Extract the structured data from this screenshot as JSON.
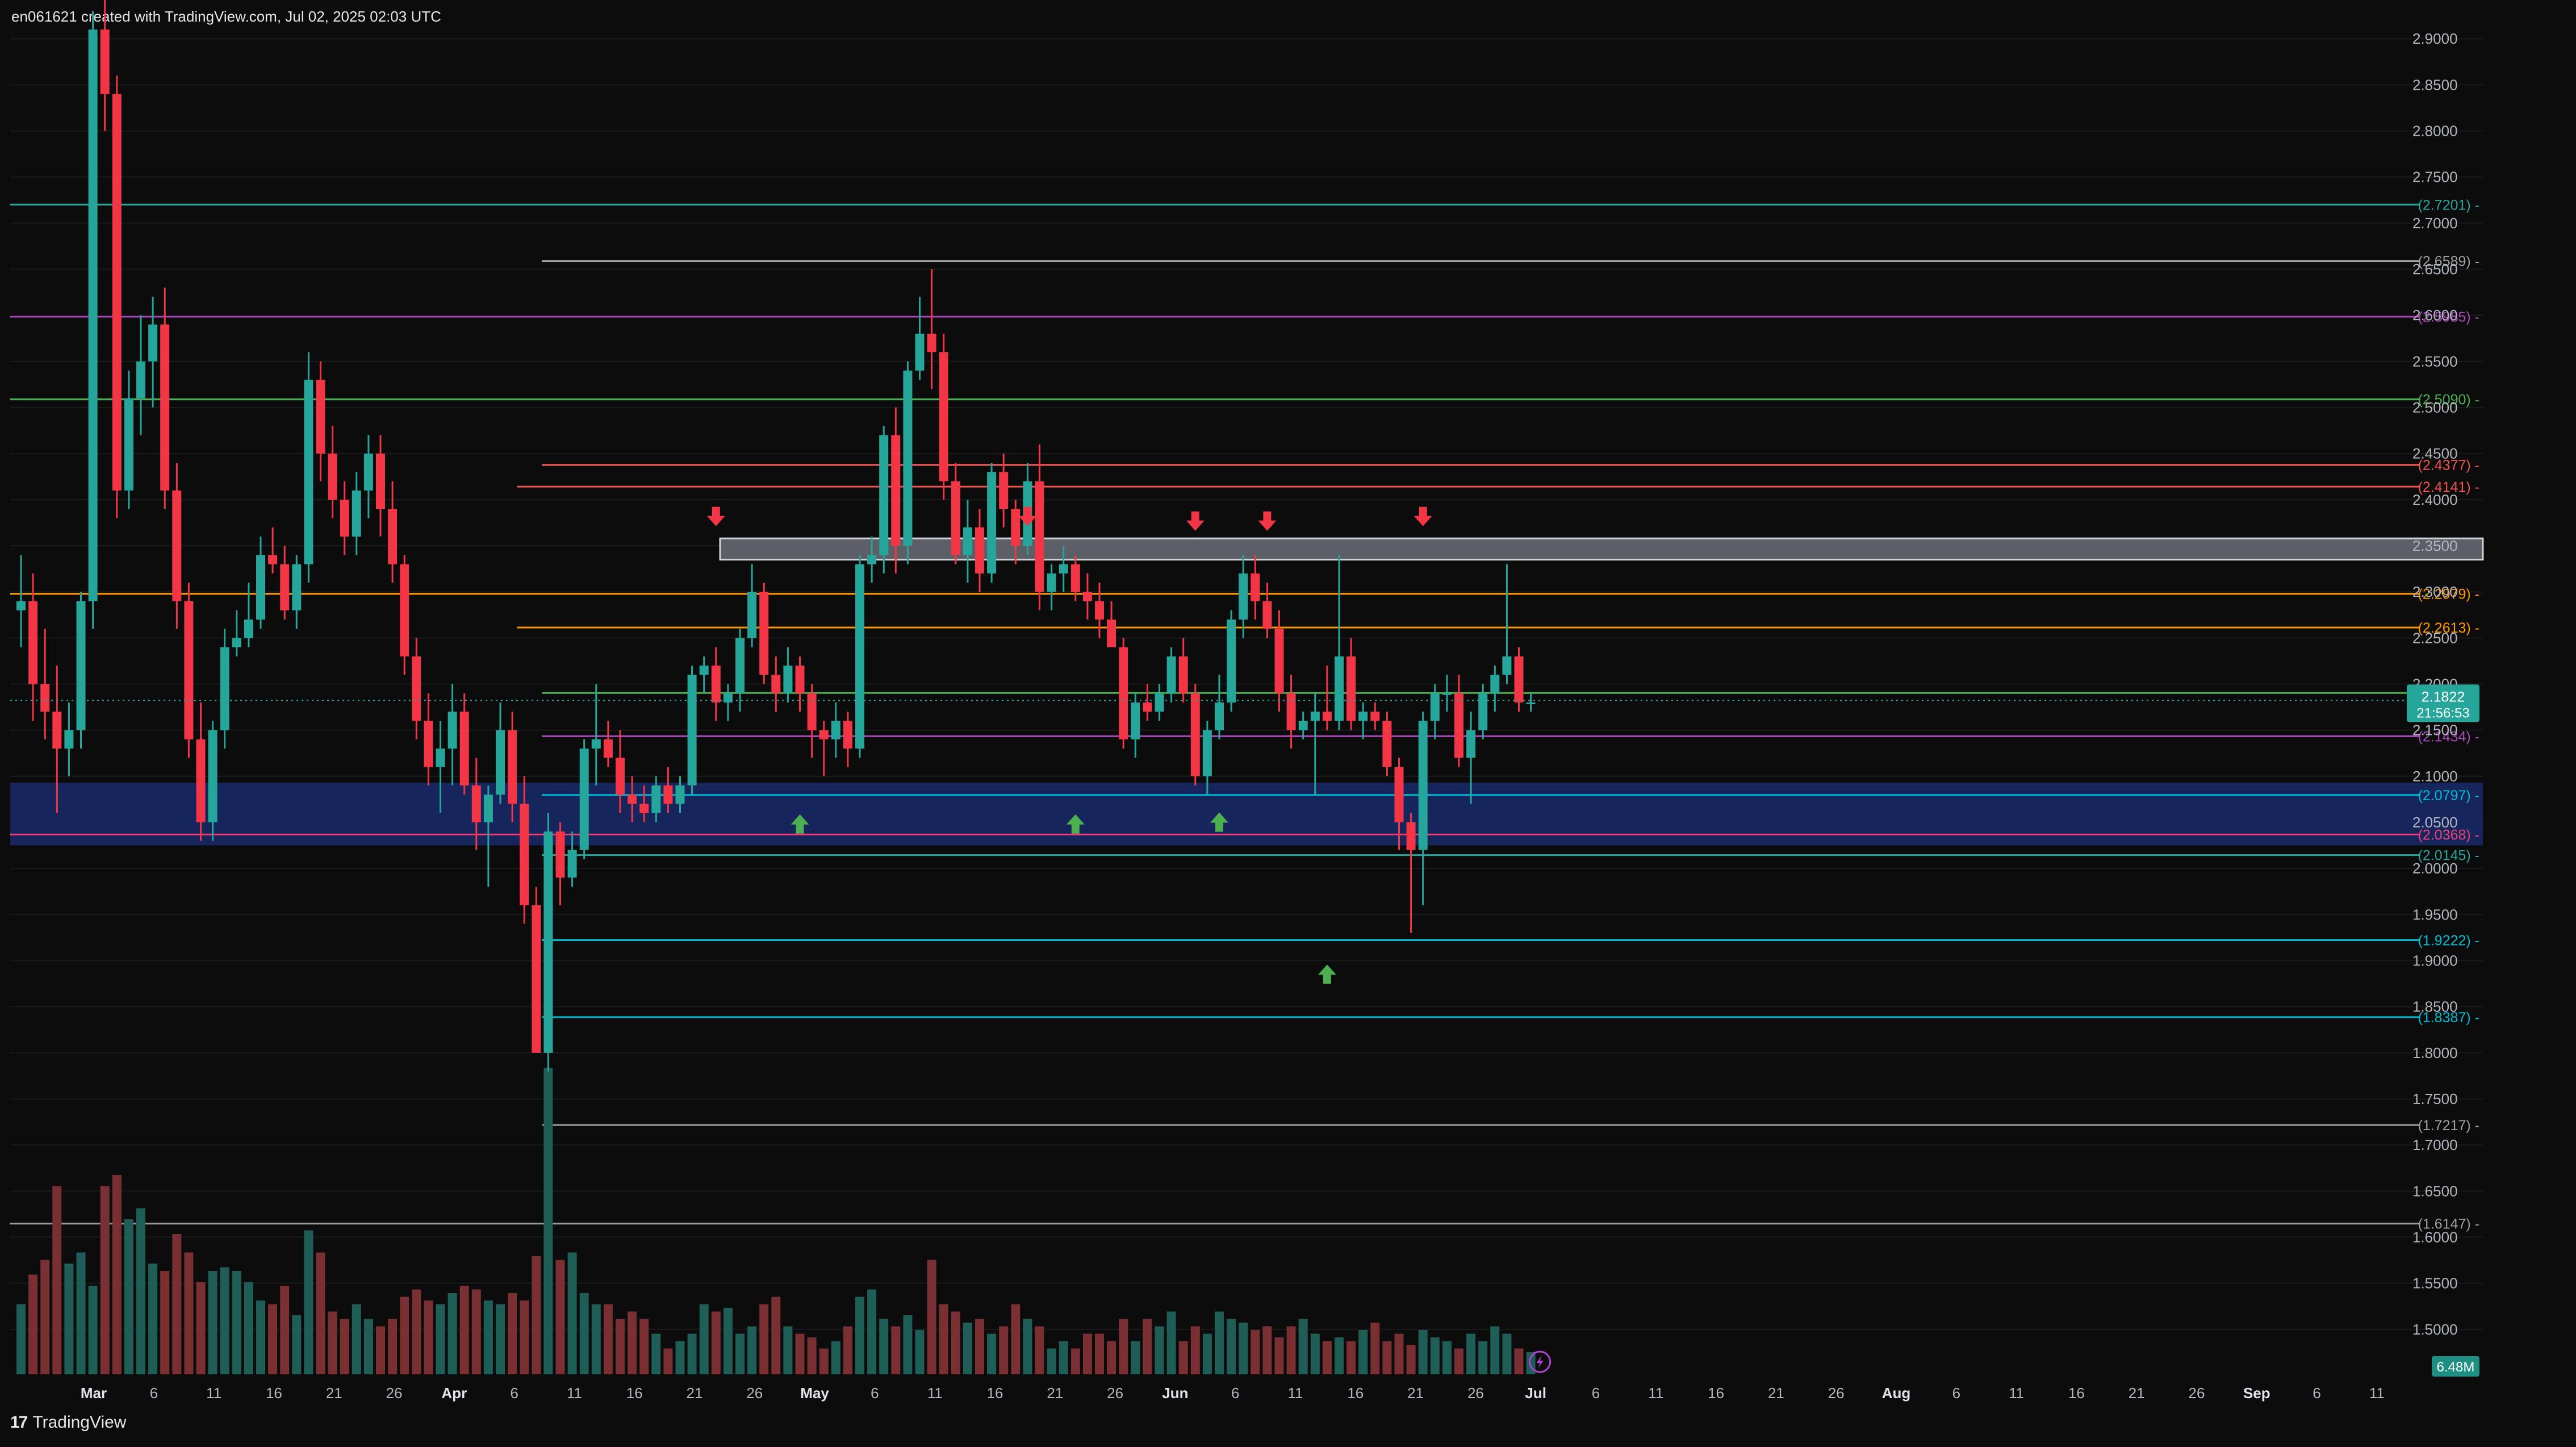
{
  "header": {
    "attribution": "en061621 created with TradingView.com, Jul 02, 2025 02:03 UTC"
  },
  "footer": {
    "brand": "TradingView"
  },
  "chart_data": {
    "type": "candlestick",
    "ylim": [
      1.45,
      2.91
    ],
    "y_ticks": [
      "2.9000",
      "2.8500",
      "2.8000",
      "2.7500",
      "2.7000",
      "2.6500",
      "2.6000",
      "2.5500",
      "2.5000",
      "2.4500",
      "2.4000",
      "2.3500",
      "2.3000",
      "2.2500",
      "2.2000",
      "2.1500",
      "2.1000",
      "2.0500",
      "2.0000",
      "1.9500",
      "1.9000",
      "1.8500",
      "1.8000",
      "1.7500",
      "1.7000",
      "1.6500",
      "1.6000",
      "1.5500",
      "1.5000"
    ],
    "x_labels": [
      "Mar",
      "6",
      "11",
      "16",
      "21",
      "26",
      "Apr",
      "6",
      "11",
      "16",
      "21",
      "26",
      "May",
      "6",
      "11",
      "16",
      "21",
      "26",
      "Jun",
      "6",
      "11",
      "16",
      "21",
      "26",
      "Jul",
      "6",
      "11",
      "16",
      "21",
      "26",
      "Aug",
      "6",
      "11",
      "16",
      "21",
      "26",
      "Sep",
      "6",
      "11"
    ],
    "bold_labels": [
      "Mar",
      "Apr",
      "May",
      "Jun",
      "Jul",
      "Aug",
      "Sep"
    ],
    "levels": [
      {
        "label": "(2.7201)",
        "value": 2.7201,
        "color": "#26a69a",
        "start": 0
      },
      {
        "label": "(2.6589)",
        "value": 2.6589,
        "color": "#9e9e9e",
        "start": 0.215
      },
      {
        "label": "(2.5985)",
        "value": 2.5985,
        "color": "#ab47bc",
        "start": 0
      },
      {
        "label": "(2.5090)",
        "value": 2.509,
        "color": "#4caf50",
        "start": 0
      },
      {
        "label": "(2.4377)",
        "value": 2.4377,
        "color": "#ef5350",
        "start": 0.215
      },
      {
        "label": "(2.4141)",
        "value": 2.4141,
        "color": "#ef5350",
        "start": 0.205
      },
      {
        "label": "(2.2979)",
        "value": 2.2979,
        "color": "#ff9800",
        "start": 0
      },
      {
        "label": "(2.2613)",
        "value": 2.2613,
        "color": "#ff9800",
        "start": 0.205
      },
      {
        "label": "(2.1903)",
        "value": 2.1903,
        "color": "#4caf50",
        "start": 0.215
      },
      {
        "label": "(2.1434)",
        "value": 2.1434,
        "color": "#ab47bc",
        "start": 0.215
      },
      {
        "label": "(2.0797)",
        "value": 2.0797,
        "color": "#00bcd4",
        "start": 0.215
      },
      {
        "label": "(2.0368)",
        "value": 2.0368,
        "color": "#ec407a",
        "start": 0
      },
      {
        "label": "(2.0145)",
        "value": 2.0145,
        "color": "#26a69a",
        "start": 0.215
      },
      {
        "label": "(1.9222)",
        "value": 1.9222,
        "color": "#00bcd4",
        "start": 0.215
      },
      {
        "label": "(1.8387)",
        "value": 1.8387,
        "color": "#00bcd4",
        "start": 0.215
      },
      {
        "label": "(1.7217)",
        "value": 1.7217,
        "color": "#9e9e9e",
        "start": 0.215
      },
      {
        "label": "(1.6147)",
        "value": 1.6147,
        "color": "#9e9e9e",
        "start": 0
      }
    ],
    "resistance_zone": [
      2.335,
      2.358
    ],
    "support_zone": [
      2.025,
      2.093
    ],
    "current_price": {
      "value": 2.1822,
      "label": "2.1822",
      "countdown": "21:56:53",
      "color": "#26a69a"
    },
    "volume_label": "6.48M",
    "down_arrows": [
      {
        "day": 58,
        "price": 2.375
      },
      {
        "day": 84,
        "price": 2.375
      },
      {
        "day": 98,
        "price": 2.37
      },
      {
        "day": 104,
        "price": 2.37
      },
      {
        "day": 117,
        "price": 2.375
      }
    ],
    "up_arrows": [
      {
        "day": 65,
        "price": 2.055
      },
      {
        "day": 88,
        "price": 2.055
      },
      {
        "day": 100,
        "price": 2.057
      },
      {
        "day": 109,
        "price": 1.892
      }
    ],
    "candles": [
      [
        2.28,
        2.34,
        2.24,
        2.29
      ],
      [
        2.29,
        2.32,
        2.16,
        2.2
      ],
      [
        2.2,
        2.26,
        2.14,
        2.17
      ],
      [
        2.17,
        2.22,
        2.06,
        2.13
      ],
      [
        2.13,
        2.18,
        2.1,
        2.15
      ],
      [
        2.15,
        2.3,
        2.13,
        2.29
      ],
      [
        2.29,
        2.93,
        2.26,
        2.91
      ],
      [
        2.91,
        2.98,
        2.8,
        2.84
      ],
      [
        2.84,
        2.86,
        2.38,
        2.41
      ],
      [
        2.41,
        2.54,
        2.39,
        2.51
      ],
      [
        2.51,
        2.6,
        2.47,
        2.55
      ],
      [
        2.55,
        2.62,
        2.5,
        2.59
      ],
      [
        2.59,
        2.63,
        2.39,
        2.41
      ],
      [
        2.41,
        2.44,
        2.26,
        2.29
      ],
      [
        2.29,
        2.31,
        2.12,
        2.14
      ],
      [
        2.14,
        2.18,
        2.03,
        2.05
      ],
      [
        2.05,
        2.16,
        2.03,
        2.15
      ],
      [
        2.15,
        2.26,
        2.13,
        2.24
      ],
      [
        2.24,
        2.28,
        2.23,
        2.25
      ],
      [
        2.25,
        2.31,
        2.24,
        2.27
      ],
      [
        2.27,
        2.36,
        2.26,
        2.34
      ],
      [
        2.34,
        2.37,
        2.32,
        2.33
      ],
      [
        2.33,
        2.35,
        2.27,
        2.28
      ],
      [
        2.28,
        2.34,
        2.26,
        2.33
      ],
      [
        2.33,
        2.56,
        2.31,
        2.53
      ],
      [
        2.53,
        2.55,
        2.42,
        2.45
      ],
      [
        2.45,
        2.48,
        2.38,
        2.4
      ],
      [
        2.4,
        2.42,
        2.34,
        2.36
      ],
      [
        2.36,
        2.43,
        2.34,
        2.41
      ],
      [
        2.41,
        2.47,
        2.38,
        2.45
      ],
      [
        2.45,
        2.47,
        2.36,
        2.39
      ],
      [
        2.39,
        2.42,
        2.31,
        2.33
      ],
      [
        2.33,
        2.34,
        2.21,
        2.23
      ],
      [
        2.23,
        2.25,
        2.14,
        2.16
      ],
      [
        2.16,
        2.19,
        2.09,
        2.11
      ],
      [
        2.11,
        2.16,
        2.06,
        2.13
      ],
      [
        2.13,
        2.2,
        2.09,
        2.17
      ],
      [
        2.17,
        2.19,
        2.08,
        2.09
      ],
      [
        2.09,
        2.12,
        2.02,
        2.05
      ],
      [
        2.05,
        2.09,
        1.98,
        2.08
      ],
      [
        2.08,
        2.18,
        2.07,
        2.15
      ],
      [
        2.15,
        2.17,
        2.05,
        2.07
      ],
      [
        2.07,
        2.1,
        1.94,
        1.96
      ],
      [
        1.96,
        1.98,
        1.8,
        1.8
      ],
      [
        1.8,
        2.06,
        1.78,
        2.04
      ],
      [
        2.04,
        2.05,
        1.96,
        1.99
      ],
      [
        1.99,
        2.04,
        1.98,
        2.02
      ],
      [
        2.02,
        2.14,
        2.01,
        2.13
      ],
      [
        2.13,
        2.2,
        2.09,
        2.14
      ],
      [
        2.14,
        2.16,
        2.11,
        2.12
      ],
      [
        2.12,
        2.15,
        2.06,
        2.08
      ],
      [
        2.08,
        2.1,
        2.05,
        2.07
      ],
      [
        2.07,
        2.09,
        2.05,
        2.06
      ],
      [
        2.06,
        2.1,
        2.05,
        2.09
      ],
      [
        2.09,
        2.11,
        2.06,
        2.07
      ],
      [
        2.07,
        2.1,
        2.06,
        2.09
      ],
      [
        2.09,
        2.22,
        2.08,
        2.21
      ],
      [
        2.21,
        2.23,
        2.19,
        2.22
      ],
      [
        2.22,
        2.24,
        2.16,
        2.18
      ],
      [
        2.18,
        2.2,
        2.16,
        2.19
      ],
      [
        2.19,
        2.26,
        2.17,
        2.25
      ],
      [
        2.25,
        2.33,
        2.24,
        2.3
      ],
      [
        2.3,
        2.31,
        2.2,
        2.21
      ],
      [
        2.21,
        2.23,
        2.17,
        2.19
      ],
      [
        2.19,
        2.24,
        2.18,
        2.22
      ],
      [
        2.22,
        2.23,
        2.17,
        2.19
      ],
      [
        2.19,
        2.2,
        2.12,
        2.15
      ],
      [
        2.15,
        2.16,
        2.1,
        2.14
      ],
      [
        2.14,
        2.18,
        2.12,
        2.16
      ],
      [
        2.16,
        2.17,
        2.11,
        2.13
      ],
      [
        2.13,
        2.34,
        2.12,
        2.33
      ],
      [
        2.33,
        2.36,
        2.31,
        2.34
      ],
      [
        2.34,
        2.48,
        2.32,
        2.47
      ],
      [
        2.47,
        2.5,
        2.32,
        2.35
      ],
      [
        2.35,
        2.55,
        2.33,
        2.54
      ],
      [
        2.54,
        2.62,
        2.53,
        2.58
      ],
      [
        2.58,
        2.65,
        2.52,
        2.56
      ],
      [
        2.56,
        2.58,
        2.4,
        2.42
      ],
      [
        2.42,
        2.44,
        2.33,
        2.34
      ],
      [
        2.34,
        2.4,
        2.31,
        2.37
      ],
      [
        2.37,
        2.39,
        2.3,
        2.32
      ],
      [
        2.32,
        2.44,
        2.31,
        2.43
      ],
      [
        2.43,
        2.45,
        2.37,
        2.39
      ],
      [
        2.39,
        2.4,
        2.33,
        2.35
      ],
      [
        2.35,
        2.44,
        2.34,
        2.42
      ],
      [
        2.42,
        2.46,
        2.28,
        2.3
      ],
      [
        2.3,
        2.33,
        2.28,
        2.32
      ],
      [
        2.32,
        2.35,
        2.3,
        2.33
      ],
      [
        2.33,
        2.34,
        2.29,
        2.3
      ],
      [
        2.3,
        2.32,
        2.27,
        2.29
      ],
      [
        2.29,
        2.31,
        2.25,
        2.27
      ],
      [
        2.27,
        2.29,
        2.24,
        2.24
      ],
      [
        2.24,
        2.25,
        2.13,
        2.14
      ],
      [
        2.14,
        2.19,
        2.12,
        2.18
      ],
      [
        2.18,
        2.2,
        2.16,
        2.17
      ],
      [
        2.17,
        2.2,
        2.16,
        2.19
      ],
      [
        2.19,
        2.24,
        2.18,
        2.23
      ],
      [
        2.23,
        2.25,
        2.18,
        2.19
      ],
      [
        2.19,
        2.2,
        2.09,
        2.1
      ],
      [
        2.1,
        2.16,
        2.08,
        2.15
      ],
      [
        2.15,
        2.21,
        2.14,
        2.18
      ],
      [
        2.18,
        2.28,
        2.17,
        2.27
      ],
      [
        2.27,
        2.34,
        2.25,
        2.32
      ],
      [
        2.32,
        2.34,
        2.27,
        2.29
      ],
      [
        2.29,
        2.31,
        2.25,
        2.26
      ],
      [
        2.26,
        2.28,
        2.17,
        2.19
      ],
      [
        2.19,
        2.21,
        2.13,
        2.15
      ],
      [
        2.15,
        2.17,
        2.14,
        2.16
      ],
      [
        2.16,
        2.19,
        2.08,
        2.17
      ],
      [
        2.17,
        2.22,
        2.15,
        2.16
      ],
      [
        2.16,
        2.34,
        2.15,
        2.23
      ],
      [
        2.23,
        2.25,
        2.15,
        2.16
      ],
      [
        2.16,
        2.18,
        2.14,
        2.17
      ],
      [
        2.17,
        2.18,
        2.15,
        2.16
      ],
      [
        2.16,
        2.17,
        2.1,
        2.11
      ],
      [
        2.11,
        2.12,
        2.02,
        2.05
      ],
      [
        2.05,
        2.06,
        1.93,
        2.02
      ],
      [
        2.02,
        2.17,
        1.96,
        2.16
      ],
      [
        2.16,
        2.2,
        2.14,
        2.19
      ],
      [
        2.19,
        2.21,
        2.17,
        2.19
      ],
      [
        2.19,
        2.21,
        2.11,
        2.12
      ],
      [
        2.12,
        2.17,
        2.07,
        2.15
      ],
      [
        2.15,
        2.2,
        2.14,
        2.19
      ],
      [
        2.19,
        2.22,
        2.17,
        2.21
      ],
      [
        2.21,
        2.33,
        2.2,
        2.23
      ],
      [
        2.23,
        2.24,
        2.17,
        2.18
      ],
      [
        2.18,
        2.19,
        2.17,
        2.18
      ]
    ],
    "volumes": [
      0.95,
      1.35,
      1.55,
      2.55,
      1.5,
      1.65,
      1.2,
      2.55,
      2.7,
      2.1,
      2.25,
      1.5,
      1.4,
      1.9,
      1.65,
      1.25,
      1.4,
      1.45,
      1.4,
      1.25,
      1.0,
      0.95,
      1.2,
      0.8,
      1.95,
      1.65,
      0.85,
      0.75,
      0.95,
      0.75,
      0.65,
      0.75,
      1.05,
      1.15,
      1.0,
      0.95,
      1.1,
      1.2,
      1.15,
      1.0,
      0.95,
      1.1,
      1.0,
      1.6,
      4.15,
      1.55,
      1.65,
      1.1,
      0.95,
      0.95,
      0.75,
      0.85,
      0.75,
      0.55,
      0.35,
      0.45,
      0.55,
      0.95,
      0.85,
      0.9,
      0.55,
      0.65,
      0.95,
      1.05,
      0.65,
      0.55,
      0.5,
      0.35,
      0.45,
      0.65,
      1.05,
      1.15,
      0.75,
      0.65,
      0.8,
      0.6,
      1.55,
      0.95,
      0.85,
      0.7,
      0.75,
      0.55,
      0.65,
      0.95,
      0.75,
      0.65,
      0.35,
      0.45,
      0.35,
      0.55,
      0.55,
      0.45,
      0.75,
      0.45,
      0.75,
      0.65,
      0.85,
      0.45,
      0.65,
      0.55,
      0.85,
      0.75,
      0.7,
      0.6,
      0.65,
      0.5,
      0.65,
      0.75,
      0.55,
      0.45,
      0.5,
      0.45,
      0.6,
      0.7,
      0.45,
      0.55,
      0.4,
      0.6,
      0.5,
      0.45,
      0.35,
      0.55,
      0.45,
      0.65,
      0.55,
      0.35,
      0.3
    ]
  }
}
